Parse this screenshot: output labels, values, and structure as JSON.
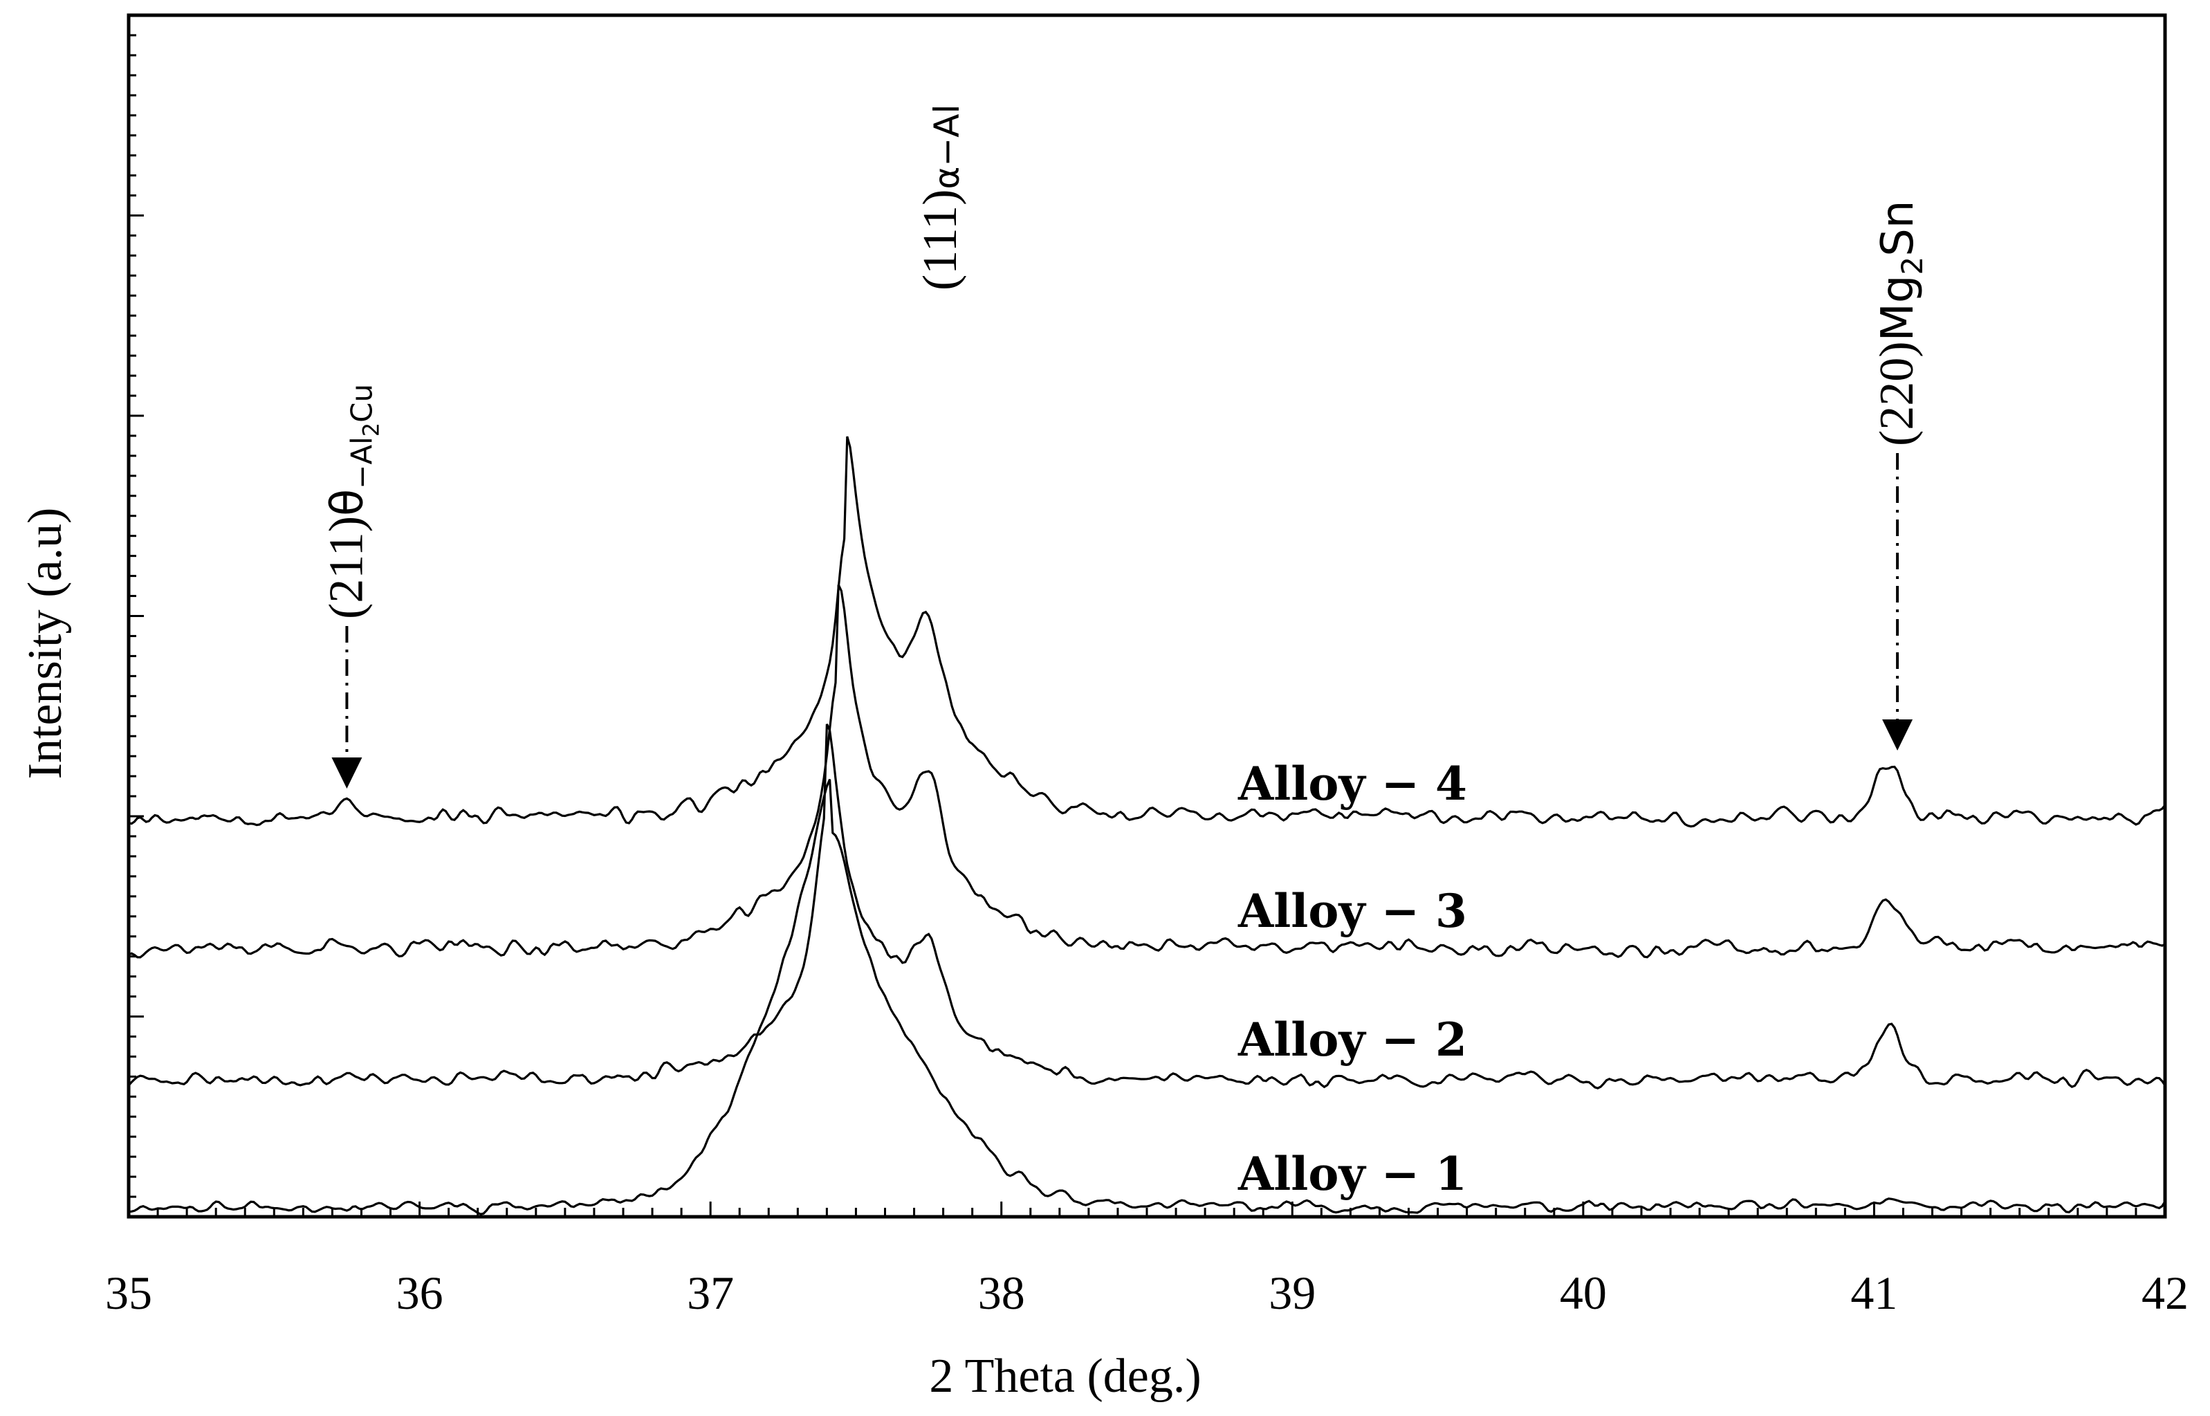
{
  "chart_data": {
    "type": "line",
    "xlabel": "2 Theta (deg.)",
    "ylabel": "Intensity (a.u)",
    "xlim": [
      35,
      42
    ],
    "x_ticks": [
      "35",
      "36",
      "37",
      "38",
      "39",
      "40",
      "41",
      "42"
    ],
    "y_ticks_labeled": false,
    "series": [
      {
        "name": "Alloy − 1",
        "label": "Alloy − 1",
        "offset": 0
      },
      {
        "name": "Alloy − 2",
        "label": "Alloy − 2",
        "offset": 1
      },
      {
        "name": "Alloy − 3",
        "label": "Alloy − 3",
        "offset": 2
      },
      {
        "name": "Alloy − 4",
        "label": "Alloy − 4",
        "offset": 3
      }
    ],
    "main_peak": {
      "x": 37.45,
      "label_prefix": "(111)",
      "label_phase": "α−Al"
    },
    "annotations": [
      {
        "x": 35.75,
        "label_prefix": "(211)",
        "label_greek": "θ",
        "label_sub": "−Al",
        "label_sub2": "2",
        "label_suffix": "Cu",
        "arrow": true
      },
      {
        "x": 41.08,
        "label_prefix": "(220)",
        "label_main": "Mg",
        "label_sub": "2",
        "label_suffix": "Sn",
        "arrow": true
      }
    ]
  }
}
